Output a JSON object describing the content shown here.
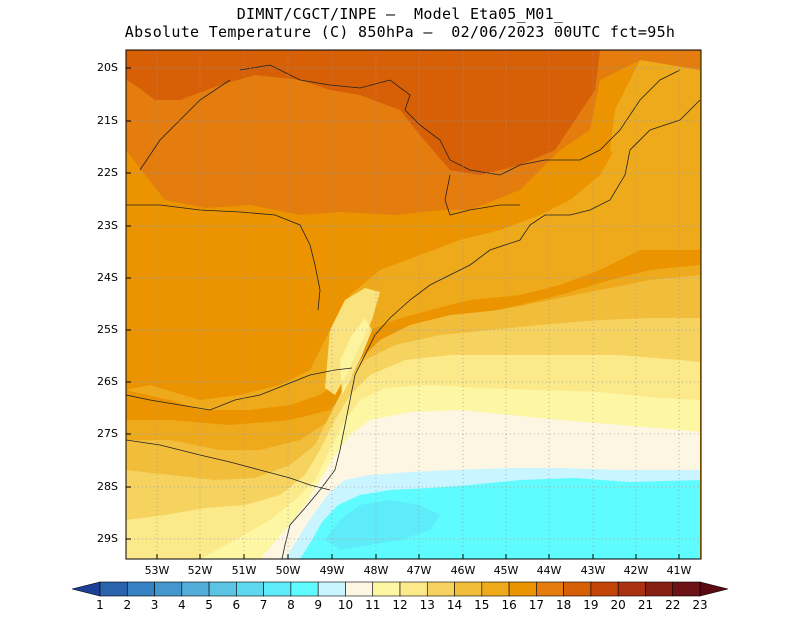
{
  "title": {
    "line1": "DIMNT/CGCT/INPE –  Model Eta05_M01_",
    "line2": "Absolute Temperature (C) 850hPa –  02/06/2023 00UTC fct=95h"
  },
  "map": {
    "lat_labels": [
      "20S",
      "21S",
      "22S",
      "23S",
      "24S",
      "25S",
      "26S",
      "27S",
      "28S",
      "29S"
    ],
    "lon_labels": [
      "53W",
      "52W",
      "51W",
      "50W",
      "49W",
      "48W",
      "47W",
      "46W",
      "45W",
      "44W",
      "43W",
      "42W",
      "41W"
    ],
    "lon_range": [
      -53.7,
      -40.6
    ],
    "lat_range": [
      -19.7,
      -29.4
    ]
  },
  "colorbar": {
    "levels": [
      "1",
      "2",
      "3",
      "4",
      "5",
      "6",
      "7",
      "8",
      "9",
      "10",
      "11",
      "12",
      "13",
      "14",
      "15",
      "16",
      "17",
      "18",
      "19",
      "20",
      "21",
      "22",
      "23"
    ],
    "colors": [
      "#1d3f97",
      "#2a62ad",
      "#3681c2",
      "#4496ce",
      "#54add9",
      "#5bc3e4",
      "#5ed8ef",
      "#5eebfa",
      "#5ffcff",
      "#c8f5ff",
      "#fdf6e2",
      "#fdf7a4",
      "#fbe98a",
      "#f6d25e",
      "#f1bd3b",
      "#eeaa1a",
      "#eb9400",
      "#e47c0e",
      "#d75f06",
      "#c24407",
      "#a93112",
      "#862014",
      "#6d1318",
      "#5b0a14"
    ]
  },
  "temperature_fields": [
    {
      "level": 19,
      "color": "#d75f06"
    },
    {
      "level": 18,
      "color": "#e47c0e"
    },
    {
      "level": 17,
      "color": "#eb9400"
    },
    {
      "level": 16,
      "color": "#eeaa1a"
    },
    {
      "level": 15,
      "color": "#f1bd3b"
    },
    {
      "level": 14,
      "color": "#f6d25e"
    },
    {
      "level": 13,
      "color": "#fbe98a"
    },
    {
      "level": 12,
      "color": "#fdf7a4"
    },
    {
      "level": 11,
      "color": "#fdf6e2"
    },
    {
      "level": 10,
      "color": "#c8f5ff"
    },
    {
      "level": 9,
      "color": "#5ffcff"
    }
  ]
}
